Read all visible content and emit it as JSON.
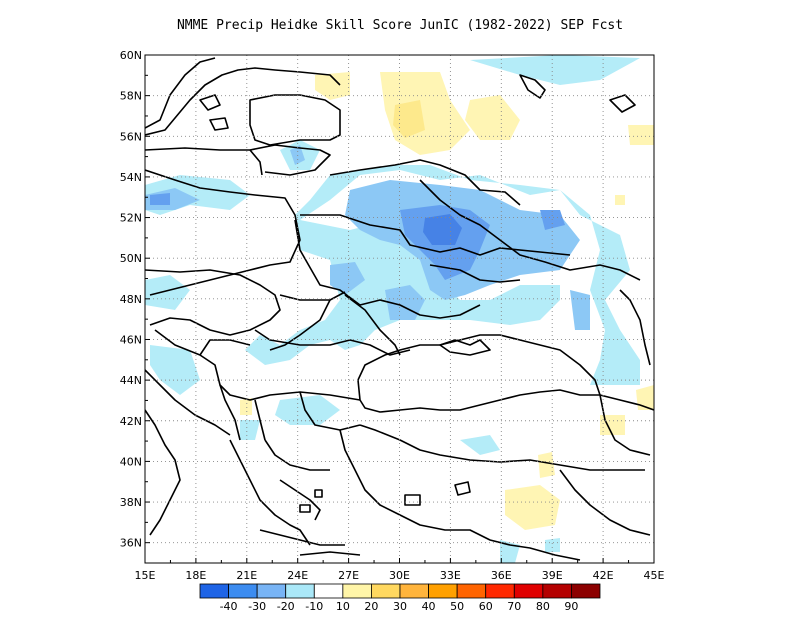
{
  "title": "NMME Precip Heidke Skill Score JunIC (1982-2022) SEP Fcst",
  "map": {
    "lon_range": [
      15,
      45
    ],
    "lat_range": [
      35,
      60
    ],
    "lon_ticks": [
      "15E",
      "18E",
      "21E",
      "24E",
      "27E",
      "30E",
      "33E",
      "36E",
      "39E",
      "42E",
      "45E"
    ],
    "lat_ticks": [
      "36N",
      "38N",
      "40N",
      "42N",
      "44N",
      "46N",
      "48N",
      "50N",
      "52N",
      "54N",
      "56N",
      "58N",
      "60N"
    ],
    "grid": "dotted"
  },
  "legend": {
    "labels": [
      "-40",
      "-30",
      "-20",
      "-10",
      "10",
      "20",
      "30",
      "40",
      "50",
      "60",
      "70",
      "80",
      "90"
    ],
    "colors": [
      "#1e64e6",
      "#3c8cf0",
      "#78b4f5",
      "#aae8f8",
      "#ffffff",
      "#fff5a8",
      "#ffd860",
      "#ffb43c",
      "#ffa000",
      "#ff6400",
      "#ff2800",
      "#e00000",
      "#b40000",
      "#8c0000"
    ]
  },
  "colors": {
    "neg_light": "#b4ecf8",
    "neg_mid": "#8cc8f5",
    "neg_strong": "#64a0ef",
    "neg_strongest": "#4682e6",
    "pos_light": "#fff5b4",
    "pos_mid": "#fde98c"
  }
}
